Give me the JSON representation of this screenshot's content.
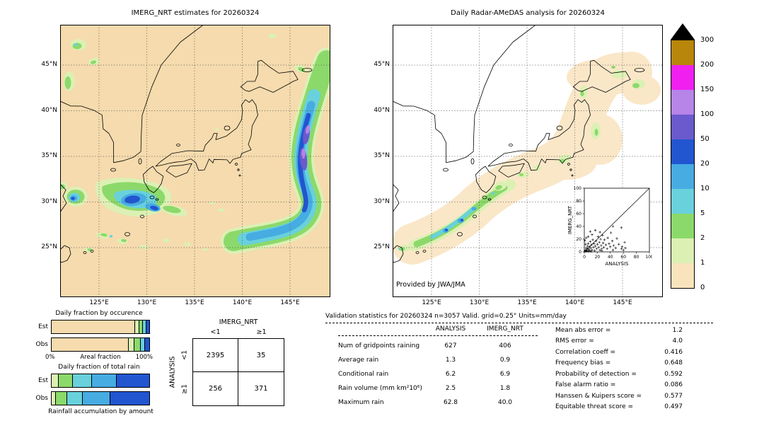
{
  "chart_data": [
    {
      "id": "imerg_map",
      "type": "heatmap",
      "title": "IMERG_NRT estimates for 20260324",
      "x_ticks": [
        "125°E",
        "130°E",
        "135°E",
        "140°E",
        "145°E"
      ],
      "y_ticks": [
        "45°N",
        "40°N",
        "35°N",
        "30°N",
        "25°N"
      ],
      "colorbar_levels_mm_day": [
        0,
        1,
        2,
        5,
        10,
        20,
        50,
        100,
        150,
        200,
        300
      ],
      "colorbar_colors": [
        "#F8E3BD",
        "#DCF0B4",
        "#8CD96B",
        "#68D1DC",
        "#46ACE2",
        "#2255D0",
        "#6A5ACD",
        "#B784E8",
        "#F020F0",
        "#B8860B"
      ],
      "colorbar_over_color": "#000000"
    },
    {
      "id": "radar_map",
      "type": "heatmap",
      "title": "Daily Radar-AMeDAS analysis for 20260324",
      "credit": "Provided by JWA/JMA",
      "x_ticks": [
        "125°E",
        "130°E",
        "135°E",
        "140°E",
        "145°E"
      ],
      "y_ticks": [
        "45°N",
        "40°N",
        "35°N",
        "30°N",
        "25°N"
      ]
    },
    {
      "id": "occurrence_bars",
      "type": "bar",
      "title": "Daily fraction by occurence",
      "categories": [
        "Est",
        "Obs"
      ],
      "axis": {
        "min_label": "0%",
        "label": "Areal fraction",
        "max_label": "100%"
      },
      "series": [
        {
          "name": "Est",
          "segments": [
            [
              "#F5DBAD",
              85.5
            ],
            [
              "#DCF0B4",
              4
            ],
            [
              "#8CD96B",
              4
            ],
            [
              "#68D1DC",
              3.5
            ],
            [
              "#2255D0",
              3
            ]
          ]
        },
        {
          "name": "Obs",
          "segments": [
            [
              "#F5DBAD",
              79
            ],
            [
              "#DCF0B4",
              6
            ],
            [
              "#8CD96B",
              6.5
            ],
            [
              "#68D1DC",
              4.5
            ],
            [
              "#2255D0",
              4
            ]
          ]
        }
      ]
    },
    {
      "id": "totalrain_bars",
      "type": "bar",
      "title": "Daily fraction of total rain",
      "caption": "Rainfall accumulation by amount",
      "categories": [
        "Est",
        "Obs"
      ],
      "series": [
        {
          "name": "Est",
          "segments": [
            [
              "#DCF0B4",
              7
            ],
            [
              "#8CD96B",
              15
            ],
            [
              "#68D1DC",
              19
            ],
            [
              "#46ACE2",
              26
            ],
            [
              "#2255D0",
              33
            ]
          ]
        },
        {
          "name": "Obs",
          "segments": [
            [
              "#DCF0B4",
              4
            ],
            [
              "#8CD96B",
              12
            ],
            [
              "#68D1DC",
              16
            ],
            [
              "#46ACE2",
              28
            ],
            [
              "#2255D0",
              40
            ]
          ]
        }
      ]
    },
    {
      "id": "contingency",
      "type": "table",
      "col_header": "IMERG_NRT",
      "row_header": "ANALYSIS",
      "col_labels": [
        "<1",
        "≥1"
      ],
      "row_labels": [
        "<1",
        "≥1"
      ],
      "matrix": [
        [
          2395,
          35
        ],
        [
          256,
          371
        ]
      ]
    },
    {
      "id": "validation",
      "type": "table",
      "title": "Validation statistics for 20260324  n=3057 Valid. grid=0.25° Units=mm/day",
      "columns": [
        "ANALYSIS",
        "IMERG_NRT"
      ],
      "rows": [
        [
          "Num of gridpoints raining",
          "627",
          "406"
        ],
        [
          "Average rain",
          "1.3",
          "0.9"
        ],
        [
          "Conditional rain",
          "6.2",
          "6.9"
        ],
        [
          "Rain volume (mm km²10⁶)",
          "2.5",
          "1.8"
        ],
        [
          "Maximum rain",
          "62.8",
          "40.0"
        ]
      ],
      "metrics": [
        [
          "Mean abs error",
          "1.2"
        ],
        [
          "RMS error",
          "4.0"
        ],
        [
          "Correlation coeff",
          "0.416"
        ],
        [
          "Frequency bias",
          "0.648"
        ],
        [
          "Probability of detection",
          "0.592"
        ],
        [
          "False alarm ratio",
          "0.086"
        ],
        [
          "Hanssen & Kuipers score",
          "0.577"
        ],
        [
          "Equitable threat score",
          "0.497"
        ]
      ]
    },
    {
      "id": "inset_scatter",
      "type": "scatter",
      "xlabel": "ANALYSIS",
      "ylabel": "IMERG_NRT",
      "xlim": [
        0,
        100
      ],
      "ylim": [
        0,
        100
      ],
      "ticks": [
        0,
        20,
        40,
        60,
        80,
        100
      ],
      "points": [
        [
          1,
          1
        ],
        [
          2,
          3
        ],
        [
          3,
          1
        ],
        [
          3,
          6
        ],
        [
          4,
          2
        ],
        [
          5,
          5
        ],
        [
          5,
          9
        ],
        [
          6,
          1
        ],
        [
          6,
          13
        ],
        [
          7,
          4
        ],
        [
          8,
          8
        ],
        [
          8,
          2
        ],
        [
          9,
          16
        ],
        [
          10,
          6
        ],
        [
          10,
          1
        ],
        [
          11,
          11
        ],
        [
          12,
          3
        ],
        [
          13,
          19
        ],
        [
          14,
          7
        ],
        [
          15,
          13
        ],
        [
          16,
          2
        ],
        [
          17,
          9
        ],
        [
          18,
          17
        ],
        [
          19,
          5
        ],
        [
          20,
          12
        ],
        [
          21,
          24
        ],
        [
          22,
          7
        ],
        [
          23,
          15
        ],
        [
          24,
          3
        ],
        [
          25,
          20
        ],
        [
          26,
          10
        ],
        [
          27,
          5
        ],
        [
          28,
          26
        ],
        [
          29,
          14
        ],
        [
          30,
          7
        ],
        [
          31,
          19
        ],
        [
          33,
          11
        ],
        [
          35,
          5
        ],
        [
          36,
          22
        ],
        [
          38,
          13
        ],
        [
          40,
          8
        ],
        [
          41,
          30
        ],
        [
          43,
          17
        ],
        [
          45,
          10
        ],
        [
          48,
          6
        ],
        [
          50,
          21
        ],
        [
          53,
          12
        ],
        [
          57,
          38
        ],
        [
          58,
          8
        ],
        [
          62,
          15
        ],
        [
          57,
          5
        ],
        [
          60,
          3
        ],
        [
          63,
          6
        ],
        [
          3,
          22
        ],
        [
          2,
          12
        ],
        [
          1,
          18
        ],
        [
          6,
          24
        ],
        [
          12,
          27
        ],
        [
          9,
          32
        ],
        [
          44,
          40
        ],
        [
          17,
          34
        ],
        [
          24,
          31
        ],
        [
          27,
          2
        ],
        [
          44,
          3
        ]
      ]
    }
  ]
}
